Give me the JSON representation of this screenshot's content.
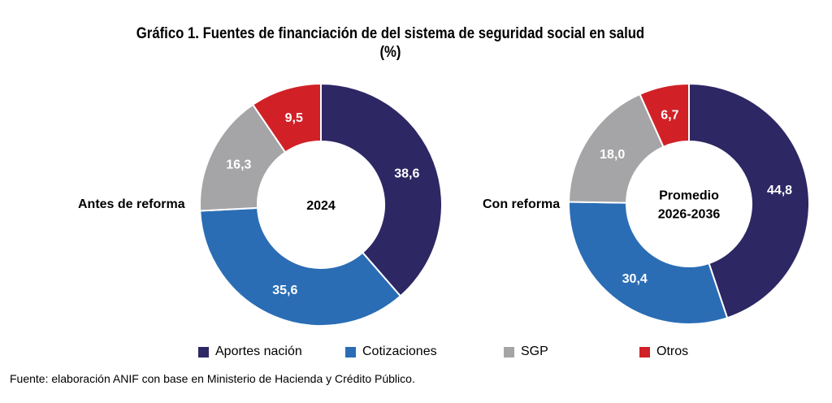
{
  "chart_data": {
    "type": "donut",
    "title": "Gráfico 1. Fuentes de financiación de del sistema de seguridad social en salud",
    "subtitle": "(%)",
    "colors": {
      "Aportes nación": "#2d2764",
      "Cotizaciones": "#2a6db5",
      "SGP": "#a5a5a7",
      "Otros": "#d12127"
    },
    "charts": [
      {
        "label": "Antes de reforma",
        "center_text": [
          "2024"
        ],
        "slices": [
          {
            "name": "Aportes nación",
            "value": 38.6,
            "label": "38,6"
          },
          {
            "name": "Cotizaciones",
            "value": 35.6,
            "label": "35,6"
          },
          {
            "name": "SGP",
            "value": 16.3,
            "label": "16,3"
          },
          {
            "name": "Otros",
            "value": 9.5,
            "label": "9,5"
          }
        ]
      },
      {
        "label": "Con reforma",
        "center_text": [
          "Promedio",
          "2026-2036"
        ],
        "slices": [
          {
            "name": "Aportes nación",
            "value": 44.8,
            "label": "44,8"
          },
          {
            "name": "Cotizaciones",
            "value": 30.4,
            "label": "30,4"
          },
          {
            "name": "SGP",
            "value": 18.0,
            "label": "18,0"
          },
          {
            "name": "Otros",
            "value": 6.7,
            "label": "6,7"
          }
        ]
      }
    ]
  },
  "legend": {
    "items": [
      "Aportes nación",
      "Cotizaciones",
      "SGP",
      "Otros"
    ]
  },
  "source": "Fuente: elaboración ANIF con base en  Ministerio de Hacienda y Crédito Público."
}
